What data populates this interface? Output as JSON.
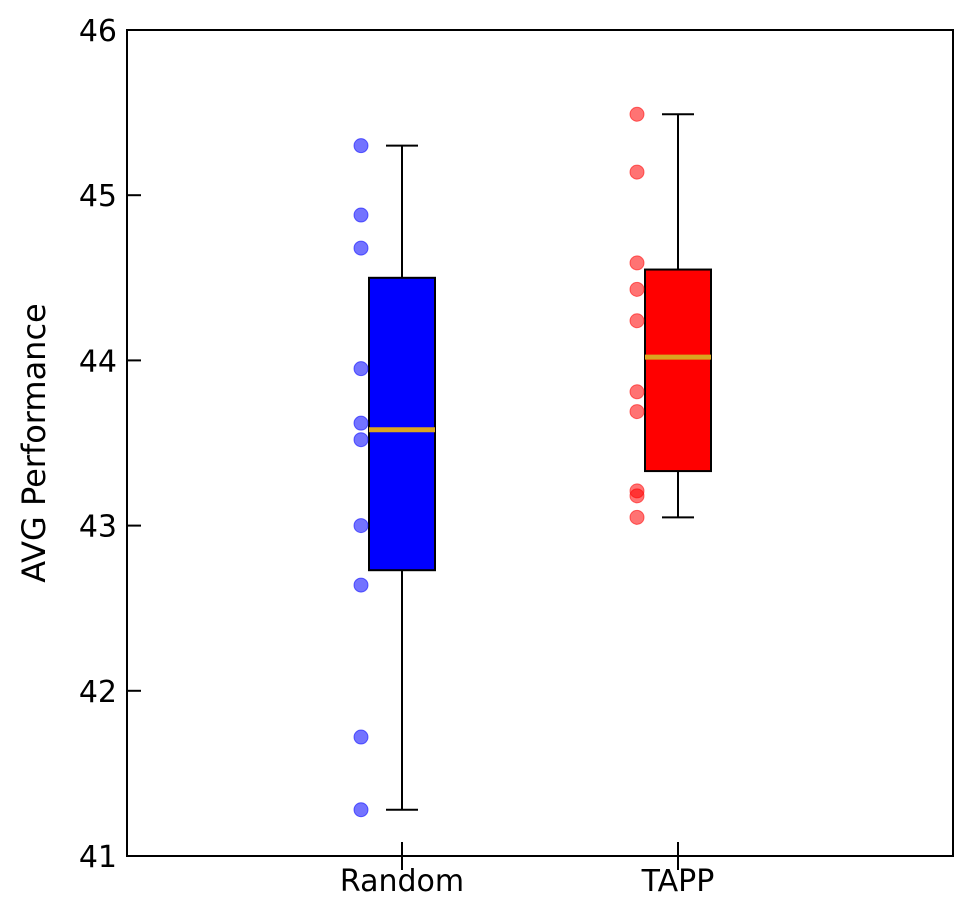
{
  "chart_data": {
    "type": "box",
    "title": "",
    "xlabel": "",
    "ylabel": "AVG Performance",
    "ylim": [
      41,
      46
    ],
    "yticks": [
      41,
      42,
      43,
      44,
      45,
      46
    ],
    "categories": [
      "Random",
      "TAPP"
    ],
    "grid": false,
    "series": [
      {
        "name": "Random",
        "color": "#0000ff",
        "box": {
          "whisker_low": 41.28,
          "q1": 42.73,
          "median": 43.58,
          "q3": 44.5,
          "whisker_high": 45.3
        },
        "points": [
          45.3,
          44.88,
          44.68,
          43.95,
          43.62,
          43.52,
          43.0,
          42.64,
          41.72,
          41.28
        ]
      },
      {
        "name": "TAPP",
        "color": "#ff0000",
        "box": {
          "whisker_low": 43.05,
          "q1": 43.33,
          "median": 44.02,
          "q3": 44.55,
          "whisker_high": 45.49
        },
        "points": [
          45.49,
          45.14,
          44.59,
          44.43,
          44.24,
          43.81,
          43.69,
          43.21,
          43.18,
          43.05
        ]
      }
    ],
    "median_color": "#daa520"
  }
}
